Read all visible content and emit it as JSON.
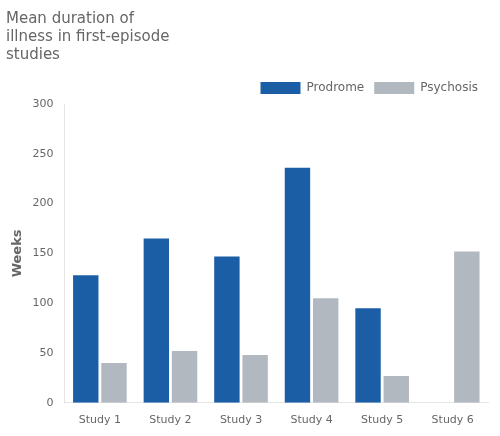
{
  "chart_data": {
    "type": "bar",
    "title": "Mean duration of\nillness in first-episode\nstudies",
    "ylabel": "Weeks",
    "categories": [
      "Study 1",
      "Study 2",
      "Study 3",
      "Study 4",
      "Study 5",
      "Study 6"
    ],
    "series": [
      {
        "name": "Prodrome",
        "color": "#1B5EA6",
        "values": [
          128,
          165,
          147,
          236,
          95,
          0
        ]
      },
      {
        "name": "Psychosis",
        "color": "#B2B8BF",
        "values": [
          40,
          52,
          48,
          105,
          27,
          152
        ]
      }
    ],
    "ylim": [
      0,
      300
    ],
    "yticks": [
      0,
      50,
      100,
      150,
      200,
      250,
      300
    ],
    "grid": false,
    "legend": "upper right"
  }
}
